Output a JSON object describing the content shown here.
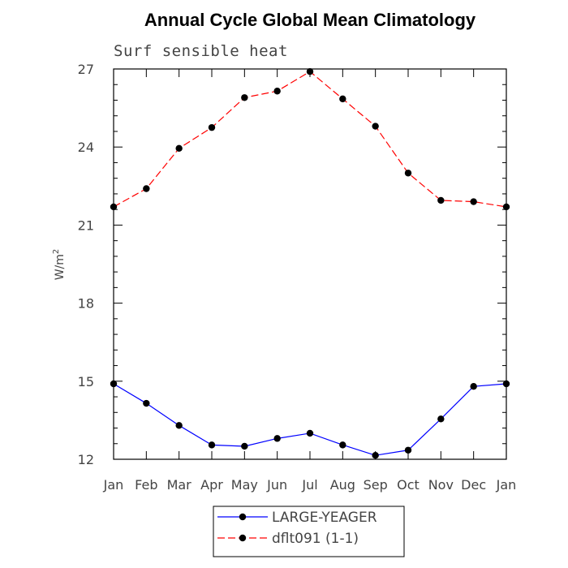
{
  "chart_data": {
    "type": "line",
    "title": "Annual Cycle Global Mean Climatology",
    "subtitle": "Surf sensible heat",
    "ylabel": "W/m",
    "ylabel_superscript": "2",
    "xlabel": "",
    "categories": [
      "Jan",
      "Feb",
      "Mar",
      "Apr",
      "May",
      "Jun",
      "Jul",
      "Aug",
      "Sep",
      "Oct",
      "Nov",
      "Dec",
      "Jan"
    ],
    "ylim": [
      12,
      27
    ],
    "yticks": [
      12,
      15,
      18,
      21,
      24,
      27
    ],
    "grid": false,
    "legend_position": "bottom-center",
    "series": [
      {
        "name": "LARGE-YEAGER",
        "color": "#0000ff",
        "dash": "solid",
        "values": [
          14.9,
          14.15,
          13.3,
          12.55,
          12.5,
          12.8,
          13.0,
          12.55,
          12.15,
          12.35,
          13.55,
          14.8,
          14.9
        ]
      },
      {
        "name": "dflt091 (1-1)",
        "color": "#ff0000",
        "dash": "dashed",
        "values": [
          21.7,
          22.4,
          23.95,
          24.75,
          25.9,
          26.15,
          26.9,
          25.85,
          24.8,
          23.0,
          21.95,
          21.9,
          21.7
        ]
      }
    ]
  }
}
